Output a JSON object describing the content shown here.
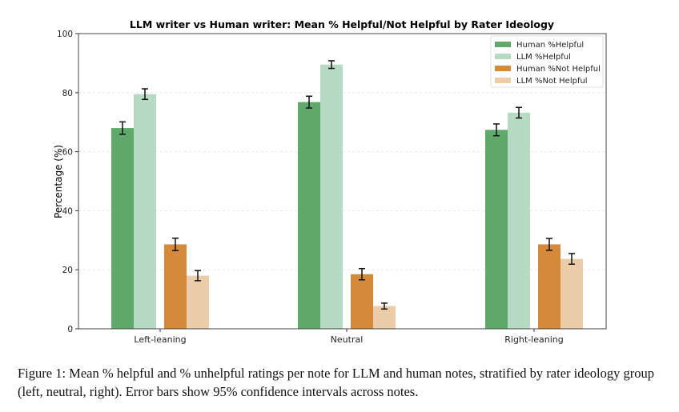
{
  "chart_data": {
    "type": "bar",
    "title": "LLM writer vs Human writer: Mean % Helpful/Not Helpful by Rater Ideology",
    "xlabel": "",
    "ylabel": "Percentage (%)",
    "ylim": [
      0,
      100
    ],
    "yticks": [
      0,
      20,
      40,
      60,
      80,
      100
    ],
    "grid": "horizontal dashed",
    "legend_position": "top-right",
    "categories": [
      "Left-leaning",
      "Neutral",
      "Right-leaning"
    ],
    "series": [
      {
        "name": "Human %Helpful",
        "color": "#5fa96a",
        "values": [
          68.0,
          76.8,
          67.4
        ],
        "ci": [
          2.1,
          2.0,
          2.0
        ]
      },
      {
        "name": "LLM %Helpful",
        "color": "#b7dbc2",
        "values": [
          79.5,
          89.5,
          73.2
        ],
        "ci": [
          1.8,
          1.3,
          1.8
        ]
      },
      {
        "name": "Human %Not Helpful",
        "color": "#d48a38",
        "values": [
          28.6,
          18.5,
          28.6
        ],
        "ci": [
          2.1,
          1.9,
          2.0
        ]
      },
      {
        "name": "LLM %Not Helpful",
        "color": "#eccda9",
        "values": [
          18.0,
          7.7,
          23.7
        ],
        "ci": [
          1.7,
          1.0,
          1.8
        ]
      }
    ]
  },
  "caption": "Figure 1: Mean % helpful and % unhelpful ratings per note for LLM and human notes, stratified by rater ideology group (left, neutral, right). Error bars show 95% confidence intervals across notes."
}
